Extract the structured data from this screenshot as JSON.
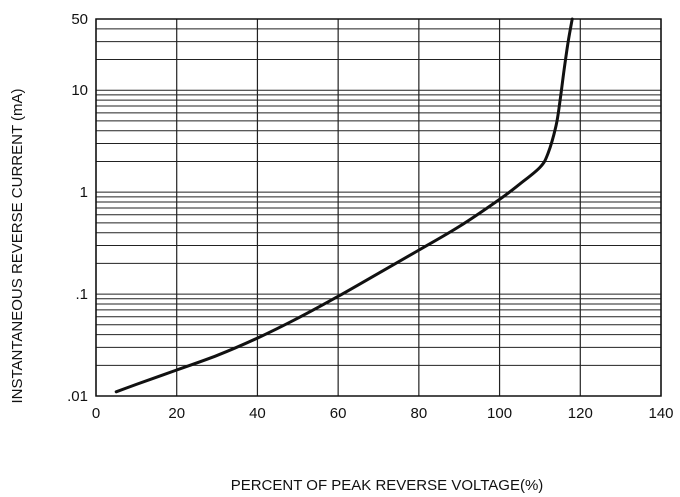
{
  "chart_data": {
    "type": "line",
    "title": "",
    "xlabel": "PERCENT OF PEAK REVERSE VOLTAGE(%)",
    "ylabel": "INSTANTANEOUS REVERSE CURRENT (mA)",
    "xlim": [
      0,
      140
    ],
    "ylim": [
      0.01,
      50
    ],
    "yscale": "log",
    "grid": true,
    "x_ticks": [
      0,
      20,
      40,
      60,
      80,
      100,
      120,
      140
    ],
    "x_tick_labels": [
      "0",
      "20",
      "40",
      "60",
      "80",
      "100",
      "120",
      "140"
    ],
    "y_ticks": [
      0.01,
      0.1,
      1,
      10,
      50
    ],
    "y_tick_labels": [
      ".01",
      ".1",
      "1",
      "10",
      "50"
    ],
    "series": [
      {
        "x": [
          5,
          10,
          20,
          30,
          40,
          50,
          60,
          70,
          80,
          90,
          100,
          105,
          110,
          112,
          114,
          115,
          116,
          117,
          118
        ],
        "values": [
          0.011,
          0.013,
          0.018,
          0.025,
          0.037,
          0.058,
          0.095,
          0.16,
          0.27,
          0.46,
          0.85,
          1.2,
          1.75,
          2.4,
          4.5,
          8,
          16,
          30,
          50
        ]
      }
    ],
    "line_color": "#111111"
  }
}
